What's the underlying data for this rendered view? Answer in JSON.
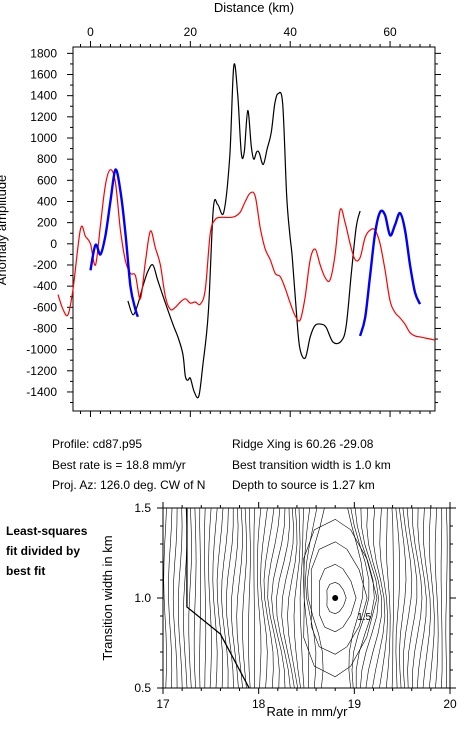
{
  "chart_data": [
    {
      "type": "line",
      "title": "",
      "xlabel": "Distance (km)",
      "ylabel": "Anomaly amplitude",
      "xlim": [
        -3.5,
        69
      ],
      "ylim": [
        -1580,
        1860
      ],
      "x_ticks": [
        0,
        20,
        40,
        60
      ],
      "y_ticks": [
        1800,
        1600,
        1400,
        1200,
        1000,
        800,
        600,
        400,
        200,
        0,
        -200,
        -400,
        -600,
        -800,
        -1000,
        -1200,
        -1400
      ],
      "grid": false,
      "series": [
        {
          "style": "observed",
          "color": "#000000",
          "x": [
            7.5,
            8.5,
            9.5,
            10.5,
            11.5,
            12.5,
            13.5,
            15,
            16.5,
            17.5,
            18.5,
            19,
            19.5,
            20,
            20.8,
            21.7,
            22.5,
            23.6,
            24.6,
            25.5,
            26.7,
            27.9,
            28.7,
            29.5,
            30.2,
            30.8,
            31.5,
            32.2,
            32.7,
            33.3,
            33.8,
            34.6,
            35.4,
            36.2,
            36.9,
            37.6,
            38.5,
            39.3,
            39.9,
            40.4,
            41.2,
            41.9,
            43,
            44,
            45,
            46.2,
            47.2,
            48.6,
            50.2,
            51.2,
            52.2,
            53.2,
            54
          ],
          "y": [
            -540,
            -670,
            -570,
            -400,
            -260,
            -200,
            -350,
            -560,
            -760,
            -880,
            -1040,
            -1250,
            -1290,
            -1270,
            -1400,
            -1440,
            -1150,
            -650,
            330,
            370,
            300,
            830,
            1680,
            1400,
            860,
            870,
            1260,
            920,
            800,
            870,
            860,
            750,
            900,
            1050,
            1320,
            1420,
            1320,
            450,
            100,
            -120,
            -620,
            -980,
            -1080,
            -880,
            -770,
            -760,
            -790,
            -930,
            -920,
            -780,
            -300,
            150,
            310
          ]
        },
        {
          "style": "model",
          "color": "#ff0000",
          "x": [
            -6.5,
            -5.5,
            -4.5,
            -3.5,
            -2,
            -1,
            0,
            1,
            2,
            3,
            4,
            5,
            6,
            7,
            8,
            9,
            10,
            11,
            12,
            13,
            14,
            15,
            16,
            17,
            18,
            19,
            20,
            21,
            22,
            23,
            24,
            25,
            26,
            27,
            28,
            29,
            30,
            31,
            32,
            33,
            34,
            35,
            36,
            37,
            38,
            39,
            40,
            41,
            42,
            43,
            44,
            45,
            46,
            47,
            48,
            49,
            50,
            51,
            52,
            53,
            54,
            55,
            56,
            57,
            58,
            59,
            60,
            61,
            62,
            63,
            64,
            65,
            66,
            67,
            68,
            69
          ],
          "y": [
            -480,
            -620,
            -670,
            -430,
            140,
            70,
            0,
            -200,
            180,
            560,
            700,
            580,
            130,
            -160,
            -280,
            -300,
            -520,
            -170,
            120,
            -40,
            -200,
            -500,
            -620,
            -600,
            -550,
            -520,
            -560,
            -550,
            -570,
            -430,
            100,
            230,
            250,
            250,
            250,
            260,
            300,
            400,
            480,
            450,
            150,
            -50,
            -150,
            -280,
            -310,
            -420,
            -560,
            -680,
            -720,
            -500,
            -150,
            -50,
            -200,
            -320,
            -340,
            -100,
            320,
            200,
            0,
            -150,
            -130,
            60,
            130,
            130,
            0,
            -250,
            -540,
            -650,
            -700,
            -760,
            -840,
            -870,
            -880,
            -890,
            -900,
            -910
          ]
        },
        {
          "style": "fit",
          "color": "#0000ff",
          "segments": [
            {
              "x": [
                0,
                1,
                2,
                3,
                4,
                5,
                6,
                7,
                8,
                9,
                9.5
              ],
              "y": [
                -250,
                -10,
                -100,
                80,
                400,
                700,
                500,
                100,
                -400,
                -620,
                -690
              ]
            },
            {
              "x": [
                54,
                55,
                56,
                57,
                58,
                59,
                60,
                61,
                62,
                63,
                64,
                65,
                66
              ],
              "y": [
                -870,
                -700,
                -300,
                100,
                300,
                270,
                80,
                180,
                290,
                130,
                -200,
                -460,
                -570
              ]
            }
          ]
        }
      ]
    },
    {
      "type": "contour",
      "title": "",
      "xlabel": "Rate in mm/yr",
      "ylabel": "Transition width in km",
      "xlim": [
        17,
        20
      ],
      "ylim": [
        0.5,
        1.5
      ],
      "x_ticks": [
        17,
        18,
        19,
        20
      ],
      "y_ticks": [
        0.5,
        1.0,
        1.5
      ],
      "minimum": {
        "x": 18.8,
        "y": 1.0
      },
      "annotation": "1.5"
    }
  ],
  "info": {
    "profile": "Profile: cd87.p95",
    "best_rate": "Best rate is = 18.8 mm/yr",
    "proj_az": "Proj. Az: 126.0 deg. CW of N",
    "ridge_xing": "Ridge Xing is 60.26 -29.08",
    "best_transition": "Best transition width is 1.0 km",
    "depth": "Depth to source is    1.27 km"
  },
  "side_label": [
    "Least-squares",
    "fit divided by",
    "best fit"
  ]
}
